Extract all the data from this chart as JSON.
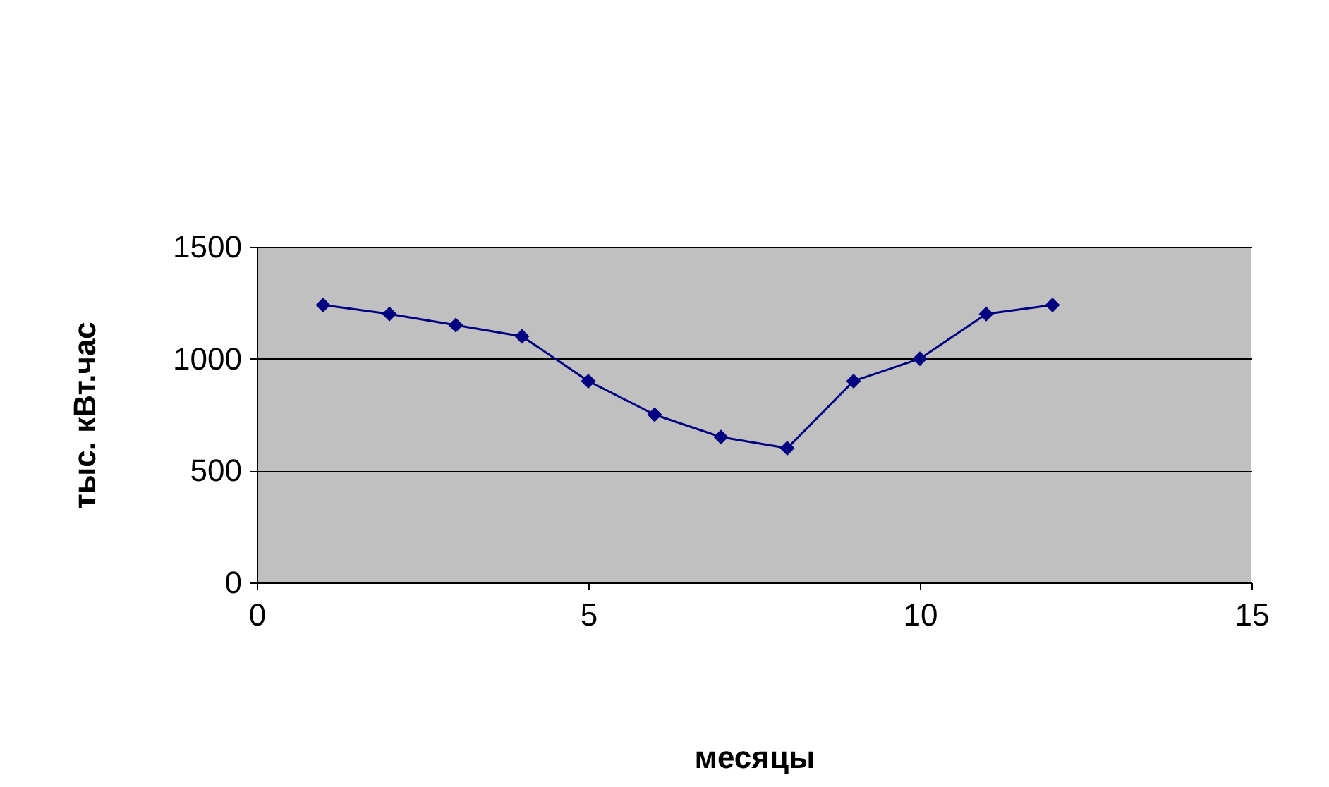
{
  "chart_data": {
    "type": "line",
    "xlabel": "месяцы",
    "ylabel": "тыс. кВт.час",
    "x": [
      1,
      2,
      3,
      4,
      5,
      6,
      7,
      8,
      9,
      10,
      11,
      12
    ],
    "series": [
      {
        "color": "#000080",
        "values": [
          1240,
          1200,
          1150,
          1100,
          900,
          750,
          650,
          600,
          900,
          1000,
          1200,
          1240
        ]
      }
    ],
    "xlim": [
      0,
      15
    ],
    "xticks": [
      0,
      5,
      10,
      15
    ],
    "ylim": [
      0,
      1500
    ],
    "yticks": [
      0,
      500,
      1000,
      1500
    ],
    "grid": "y",
    "marker": "diamond",
    "line_style": "solid"
  }
}
